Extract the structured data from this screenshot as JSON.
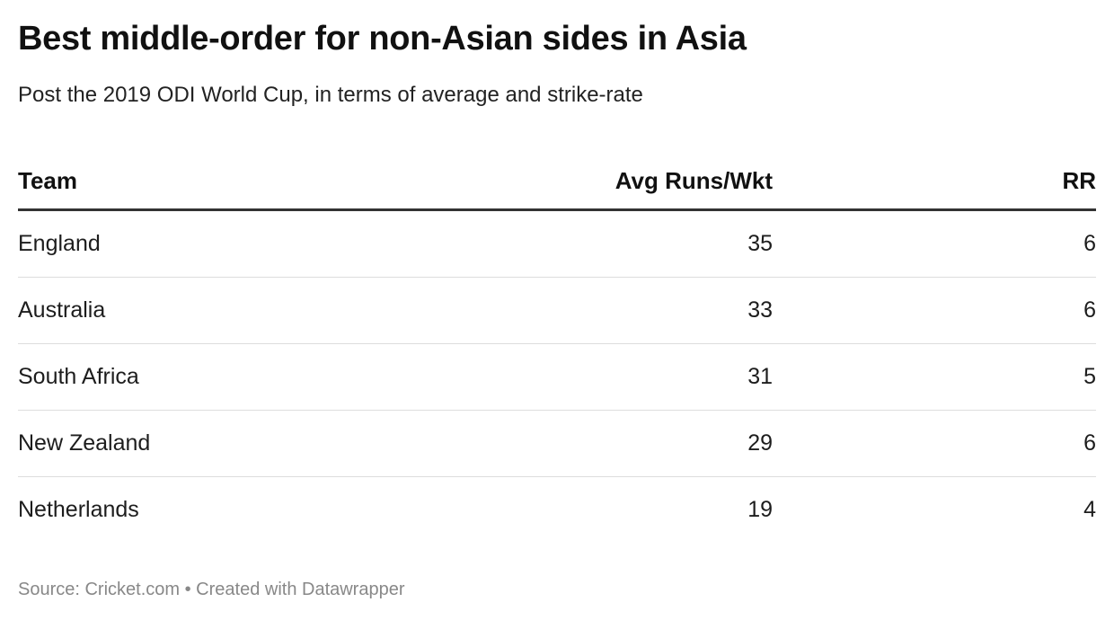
{
  "title": "Best middle-order for non-Asian sides in Asia",
  "subtitle": "Post the 2019 ODI World Cup, in terms of average and strike-rate",
  "table": {
    "headers": [
      "Team",
      "Avg Runs/Wkt",
      "RR"
    ],
    "rows": [
      [
        "England",
        "35",
        "6"
      ],
      [
        "Australia",
        "33",
        "6"
      ],
      [
        "South Africa",
        "31",
        "5"
      ],
      [
        "New Zealand",
        "29",
        "6"
      ],
      [
        "Netherlands",
        "19",
        "4"
      ]
    ]
  },
  "footer": "Source: Cricket.com • Created with Datawrapper"
}
